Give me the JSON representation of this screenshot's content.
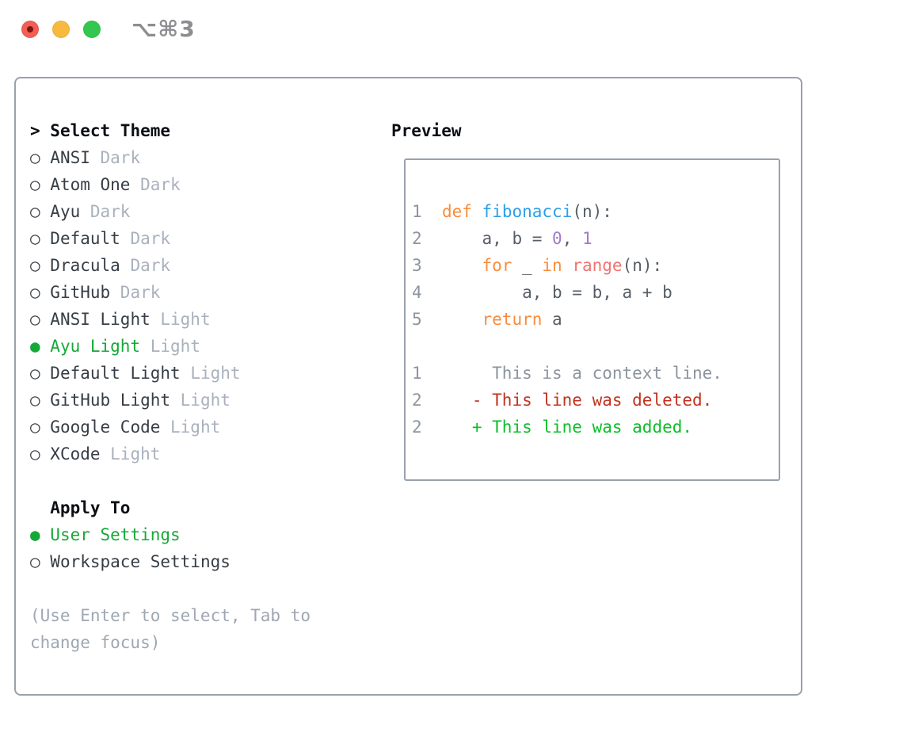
{
  "window": {
    "title": "⌥⌘3",
    "traffic_light_icons": [
      "close-icon",
      "minimize-icon",
      "zoom-icon"
    ]
  },
  "theme_list": {
    "prompt": ">",
    "header_label": "Select Theme",
    "radio_icons": {
      "unselected": "○",
      "selected": "●"
    },
    "items": [
      {
        "marker": "○",
        "name": "ANSI",
        "variant": "Dark",
        "selected": false
      },
      {
        "marker": "○",
        "name": "Atom One",
        "variant": "Dark",
        "selected": false
      },
      {
        "marker": "○",
        "name": "Ayu",
        "variant": "Dark",
        "selected": false
      },
      {
        "marker": "○",
        "name": "Default",
        "variant": "Dark",
        "selected": false
      },
      {
        "marker": "○",
        "name": "Dracula",
        "variant": "Dark",
        "selected": false
      },
      {
        "marker": "○",
        "name": "GitHub",
        "variant": "Dark",
        "selected": false
      },
      {
        "marker": "○",
        "name": "ANSI Light",
        "variant": "Light",
        "selected": false
      },
      {
        "marker": "●",
        "name": "Ayu Light",
        "variant": "Light",
        "selected": true
      },
      {
        "marker": "○",
        "name": "Default Light",
        "variant": "Light",
        "selected": false
      },
      {
        "marker": "○",
        "name": "GitHub Light",
        "variant": "Light",
        "selected": false
      },
      {
        "marker": "○",
        "name": "Google Code",
        "variant": "Light",
        "selected": false
      },
      {
        "marker": "○",
        "name": "XCode",
        "variant": "Light",
        "selected": false
      }
    ]
  },
  "apply_to": {
    "header_label": "Apply To",
    "options": [
      {
        "marker": "●",
        "label": "User Settings",
        "selected": true
      },
      {
        "marker": "○",
        "label": "Workspace Settings",
        "selected": false
      }
    ]
  },
  "hint_lines": [
    "(Use Enter to select, Tab to",
    "change focus)"
  ],
  "preview": {
    "header_label": "Preview",
    "lines": [
      {
        "segments": [
          {
            "t": "1",
            "c": "num"
          },
          {
            "t": "  ",
            "c": "fg"
          },
          {
            "t": "def",
            "c": "kw"
          },
          {
            "t": " ",
            "c": "fg"
          },
          {
            "t": "fibonacci",
            "c": "fn"
          },
          {
            "t": "(n):",
            "c": "fg"
          }
        ]
      },
      {
        "segments": [
          {
            "t": "2",
            "c": "num"
          },
          {
            "t": "      a, b = ",
            "c": "fg"
          },
          {
            "t": "0",
            "c": "const"
          },
          {
            "t": ", ",
            "c": "fg"
          },
          {
            "t": "1",
            "c": "const"
          }
        ]
      },
      {
        "segments": [
          {
            "t": "3",
            "c": "num"
          },
          {
            "t": "      ",
            "c": "fg"
          },
          {
            "t": "for",
            "c": "kw"
          },
          {
            "t": " _ ",
            "c": "fg"
          },
          {
            "t": "in",
            "c": "kw"
          },
          {
            "t": " ",
            "c": "fg"
          },
          {
            "t": "range",
            "c": "builtin"
          },
          {
            "t": "(n):",
            "c": "fg"
          }
        ]
      },
      {
        "segments": [
          {
            "t": "4",
            "c": "num"
          },
          {
            "t": "          a, b = b, a + b",
            "c": "fg"
          }
        ]
      },
      {
        "segments": [
          {
            "t": "5",
            "c": "num"
          },
          {
            "t": "      ",
            "c": "fg"
          },
          {
            "t": "return",
            "c": "kw"
          },
          {
            "t": " a",
            "c": "fg"
          }
        ]
      },
      {
        "segments": []
      },
      {
        "segments": [
          {
            "t": "1",
            "c": "num"
          },
          {
            "t": "       This is a context line.",
            "c": "ctx"
          }
        ]
      },
      {
        "segments": [
          {
            "t": "2",
            "c": "num"
          },
          {
            "t": "     ",
            "c": "fg"
          },
          {
            "t": "- This line was deleted.",
            "c": "del"
          }
        ]
      },
      {
        "segments": [
          {
            "t": "2",
            "c": "num"
          },
          {
            "t": "     ",
            "c": "fg"
          },
          {
            "t": "+ This line was added.",
            "c": "add"
          }
        ]
      }
    ]
  },
  "colors": {
    "accent-green": "#16A837",
    "panel-border": "#99A1AC",
    "list-text": "#363D45",
    "header-text": "#0B0E13",
    "dim-text": "#A9B1BD",
    "hint-text": "#9EA7B3",
    "gutter": "#8C949E",
    "code-fg": "#565E67",
    "keyword-orange": "#F98C3D",
    "function-blue": "#2D9FE6",
    "constant-purple": "#A37ACC",
    "builtin-coral": "#F27370",
    "diff-red": "#C1321F",
    "diff-green": "#0EBE2A",
    "titlebar-text": "#8D8D92",
    "traffic-red": "#F25E56",
    "traffic-red-dot": "#7C150E",
    "traffic-yellow": "#F7BA3E",
    "traffic-green": "#33C74F"
  }
}
